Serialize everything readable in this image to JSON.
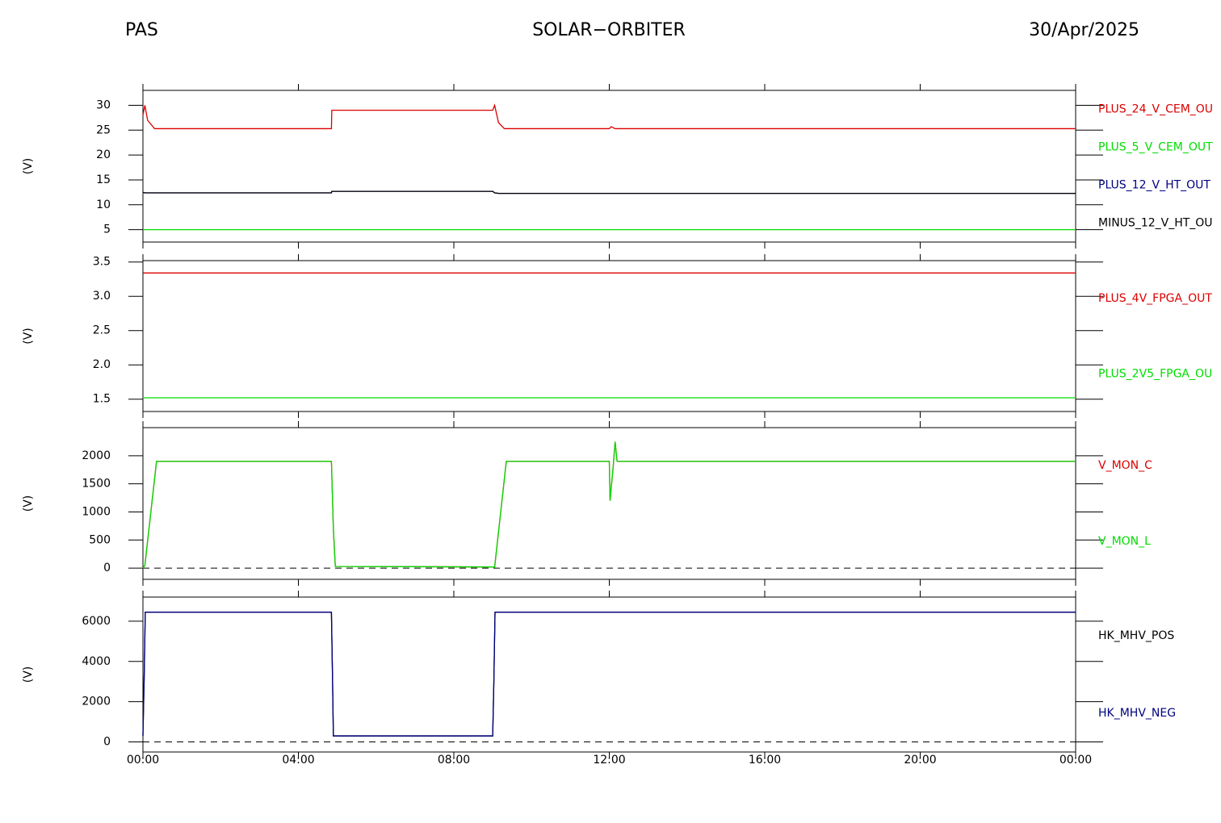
{
  "header": {
    "left": "PAS",
    "center": "SOLAR−ORBITER",
    "right": "30/Apr/2025"
  },
  "chart_data": [
    {
      "type": "line",
      "ylabel": "(V)",
      "xlim": [
        0,
        24
      ],
      "xticks": [
        0,
        4,
        8,
        12,
        16,
        20,
        24
      ],
      "ylim": [
        2.5,
        33
      ],
      "yticks": [
        5,
        10,
        15,
        20,
        25,
        30
      ],
      "x": [
        0,
        0.05,
        0.12,
        0.3,
        4.85,
        4.86,
        9.0,
        9.05,
        9.15,
        9.3,
        12.0,
        12.05,
        12.15,
        24
      ],
      "series": [
        {
          "name": "PLUS_24_V_CEM_OU",
          "color": "#dd0000",
          "values": [
            28,
            30,
            27,
            25.3,
            25.3,
            29,
            29,
            30,
            26.5,
            25.3,
            25.3,
            25.7,
            25.3,
            25.3
          ]
        },
        {
          "name": "PLUS_5_V_CEM_OUT",
          "color": "#00dd00",
          "values": [
            5,
            5,
            5,
            5,
            5,
            5,
            5,
            5,
            5,
            5,
            5,
            5,
            5,
            5
          ]
        },
        {
          "name": "PLUS_12_V_HT_OUT",
          "color": "#000080",
          "values": [
            12.5,
            12.4,
            12.4,
            12.4,
            12.4,
            12.7,
            12.7,
            12.4,
            12.3,
            12.3,
            12.3,
            12.3,
            12.3,
            12.3
          ]
        },
        {
          "name": "MINUS_12_V_HT_OU",
          "color": "#000000",
          "values": [
            12.5,
            12.4,
            12.4,
            12.4,
            12.4,
            12.7,
            12.7,
            12.4,
            12.3,
            12.3,
            12.3,
            12.3,
            12.3,
            12.3
          ]
        }
      ]
    },
    {
      "type": "line",
      "ylabel": "(V)",
      "xlim": [
        0,
        24
      ],
      "xticks": [
        0,
        4,
        8,
        12,
        16,
        20,
        24
      ],
      "ylim": [
        1.32,
        3.52
      ],
      "yticks": [
        1.5,
        {
          "value": 2,
          "label": "2.0"
        },
        2.5,
        {
          "value": 3,
          "label": "3.0"
        },
        3.5
      ],
      "x": [
        0,
        24
      ],
      "series": [
        {
          "name": "PLUS_4V_FPGA_OUT",
          "color": "#dd0000",
          "values": [
            3.34,
            3.34
          ]
        },
        {
          "name": "PLUS_2V5_FPGA_OU",
          "color": "#00dd00",
          "values": [
            1.52,
            1.52
          ]
        }
      ]
    },
    {
      "type": "line",
      "ylabel": "(V)",
      "xlim": [
        0,
        24
      ],
      "xticks": [
        0,
        4,
        8,
        12,
        16,
        20,
        24
      ],
      "ylim": [
        -200,
        2500
      ],
      "yticks": [
        0,
        500,
        1000,
        1500,
        2000
      ],
      "zero_line": true,
      "x": [
        0,
        0.05,
        0.35,
        4.85,
        4.9,
        4.95,
        9.05,
        9.35,
        12.0,
        12.02,
        12.1,
        12.15,
        12.2,
        24
      ],
      "series": [
        {
          "name": "V_MON_C",
          "color": "#dd0000",
          "values": [
            0,
            50,
            1900,
            1900,
            700,
            30,
            20,
            1900,
            1900,
            1200,
            1800,
            2250,
            1900,
            1900
          ]
        },
        {
          "name": "V_MON_L",
          "color": "#00dd00",
          "values": [
            0,
            50,
            1900,
            1900,
            700,
            30,
            20,
            1900,
            1900,
            1200,
            1800,
            2250,
            1900,
            1900
          ]
        }
      ]
    },
    {
      "type": "line",
      "ylabel": "(V)",
      "xlim": [
        0,
        24
      ],
      "xticks": [
        {
          "value": 0,
          "label": "00:00"
        },
        {
          "value": 4,
          "label": "04:00"
        },
        {
          "value": 8,
          "label": "08:00"
        },
        {
          "value": 12,
          "label": "12:00"
        },
        {
          "value": 16,
          "label": "16:00"
        },
        {
          "value": 20,
          "label": "20:00"
        },
        {
          "value": 24,
          "label": "00:00"
        }
      ],
      "ylim": [
        -500,
        7200
      ],
      "yticks": [
        0,
        2000,
        4000,
        6000
      ],
      "zero_line": true,
      "x": [
        0,
        0.03,
        0.06,
        4.85,
        4.88,
        4.9,
        9.0,
        9.03,
        9.06,
        24
      ],
      "series": [
        {
          "name": "HK_MHV_POS",
          "color": "#000000",
          "values": [
            300,
            3000,
            6450,
            6450,
            3000,
            300,
            300,
            3000,
            6450,
            6450
          ]
        },
        {
          "name": "HK_MHV_NEG",
          "color": "#000080",
          "values": [
            300,
            3000,
            6450,
            6450,
            3000,
            300,
            300,
            3000,
            6450,
            6450
          ]
        }
      ]
    }
  ]
}
